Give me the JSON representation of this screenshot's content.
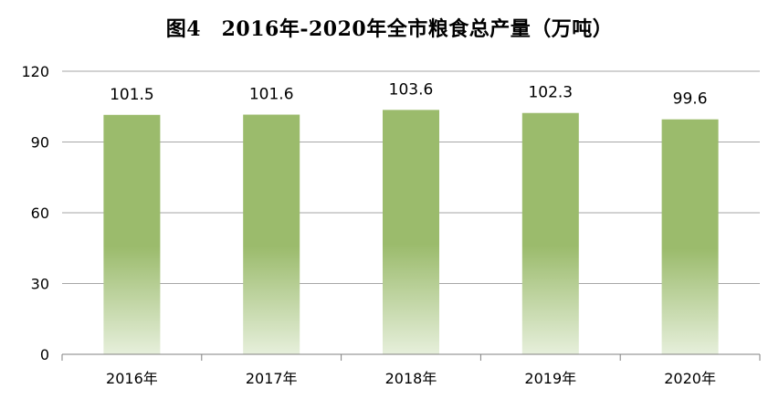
{
  "chart_data": {
    "type": "bar",
    "title": "图4　2016年-2020年全市粮食总产量（万吨）",
    "categories": [
      "2016年",
      "2017年",
      "2018年",
      "2019年",
      "2020年"
    ],
    "values": [
      101.5,
      101.6,
      103.6,
      102.3,
      99.6
    ],
    "data_labels": [
      "101.5",
      "101.6",
      "103.6",
      "102.3",
      "99.6"
    ],
    "ylim": [
      0,
      120
    ],
    "yticks": [
      0,
      30,
      60,
      90,
      120
    ],
    "ytick_labels": [
      "0",
      "30",
      "60",
      "90",
      "120"
    ],
    "grid": true,
    "legend": "none",
    "colors": {
      "bar_top": "#9bbb6c",
      "bar_mid": "#9bbb6c",
      "bar_bottom": "#e6efdb",
      "grid": "#a6a6a6",
      "axis": "#808080"
    }
  }
}
